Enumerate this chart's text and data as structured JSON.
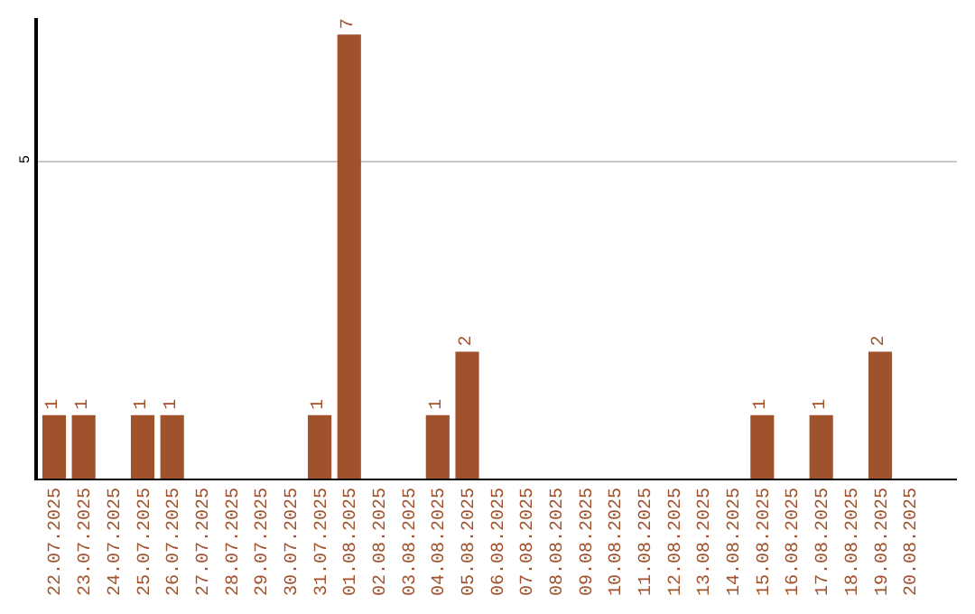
{
  "chart_data": {
    "type": "bar",
    "categories": [
      "22.07.2025",
      "23.07.2025",
      "24.07.2025",
      "25.07.2025",
      "26.07.2025",
      "27.07.2025",
      "28.07.2025",
      "29.07.2025",
      "30.07.2025",
      "31.07.2025",
      "01.08.2025",
      "02.08.2025",
      "03.08.2025",
      "04.08.2025",
      "05.08.2025",
      "06.08.2025",
      "07.08.2025",
      "08.08.2025",
      "09.08.2025",
      "10.08.2025",
      "11.08.2025",
      "12.08.2025",
      "13.08.2025",
      "14.08.2025",
      "15.08.2025",
      "16.08.2025",
      "17.08.2025",
      "18.08.2025",
      "19.08.2025",
      "20.08.2025"
    ],
    "values": [
      1,
      1,
      0,
      1,
      1,
      0,
      0,
      0,
      0,
      1,
      7,
      0,
      0,
      1,
      2,
      0,
      0,
      0,
      0,
      0,
      0,
      0,
      0,
      0,
      1,
      0,
      1,
      0,
      2,
      0
    ],
    "value_labels": [
      "1",
      "1",
      null,
      "1",
      "1",
      null,
      null,
      null,
      null,
      "1",
      "7",
      null,
      null,
      "1",
      "2",
      null,
      null,
      null,
      null,
      null,
      null,
      null,
      null,
      null,
      "1",
      null,
      "1",
      null,
      "2",
      null
    ],
    "color": "#a0522d",
    "ylim": [
      0,
      7.26
    ],
    "yticks": [
      5
    ],
    "grid": "y"
  }
}
